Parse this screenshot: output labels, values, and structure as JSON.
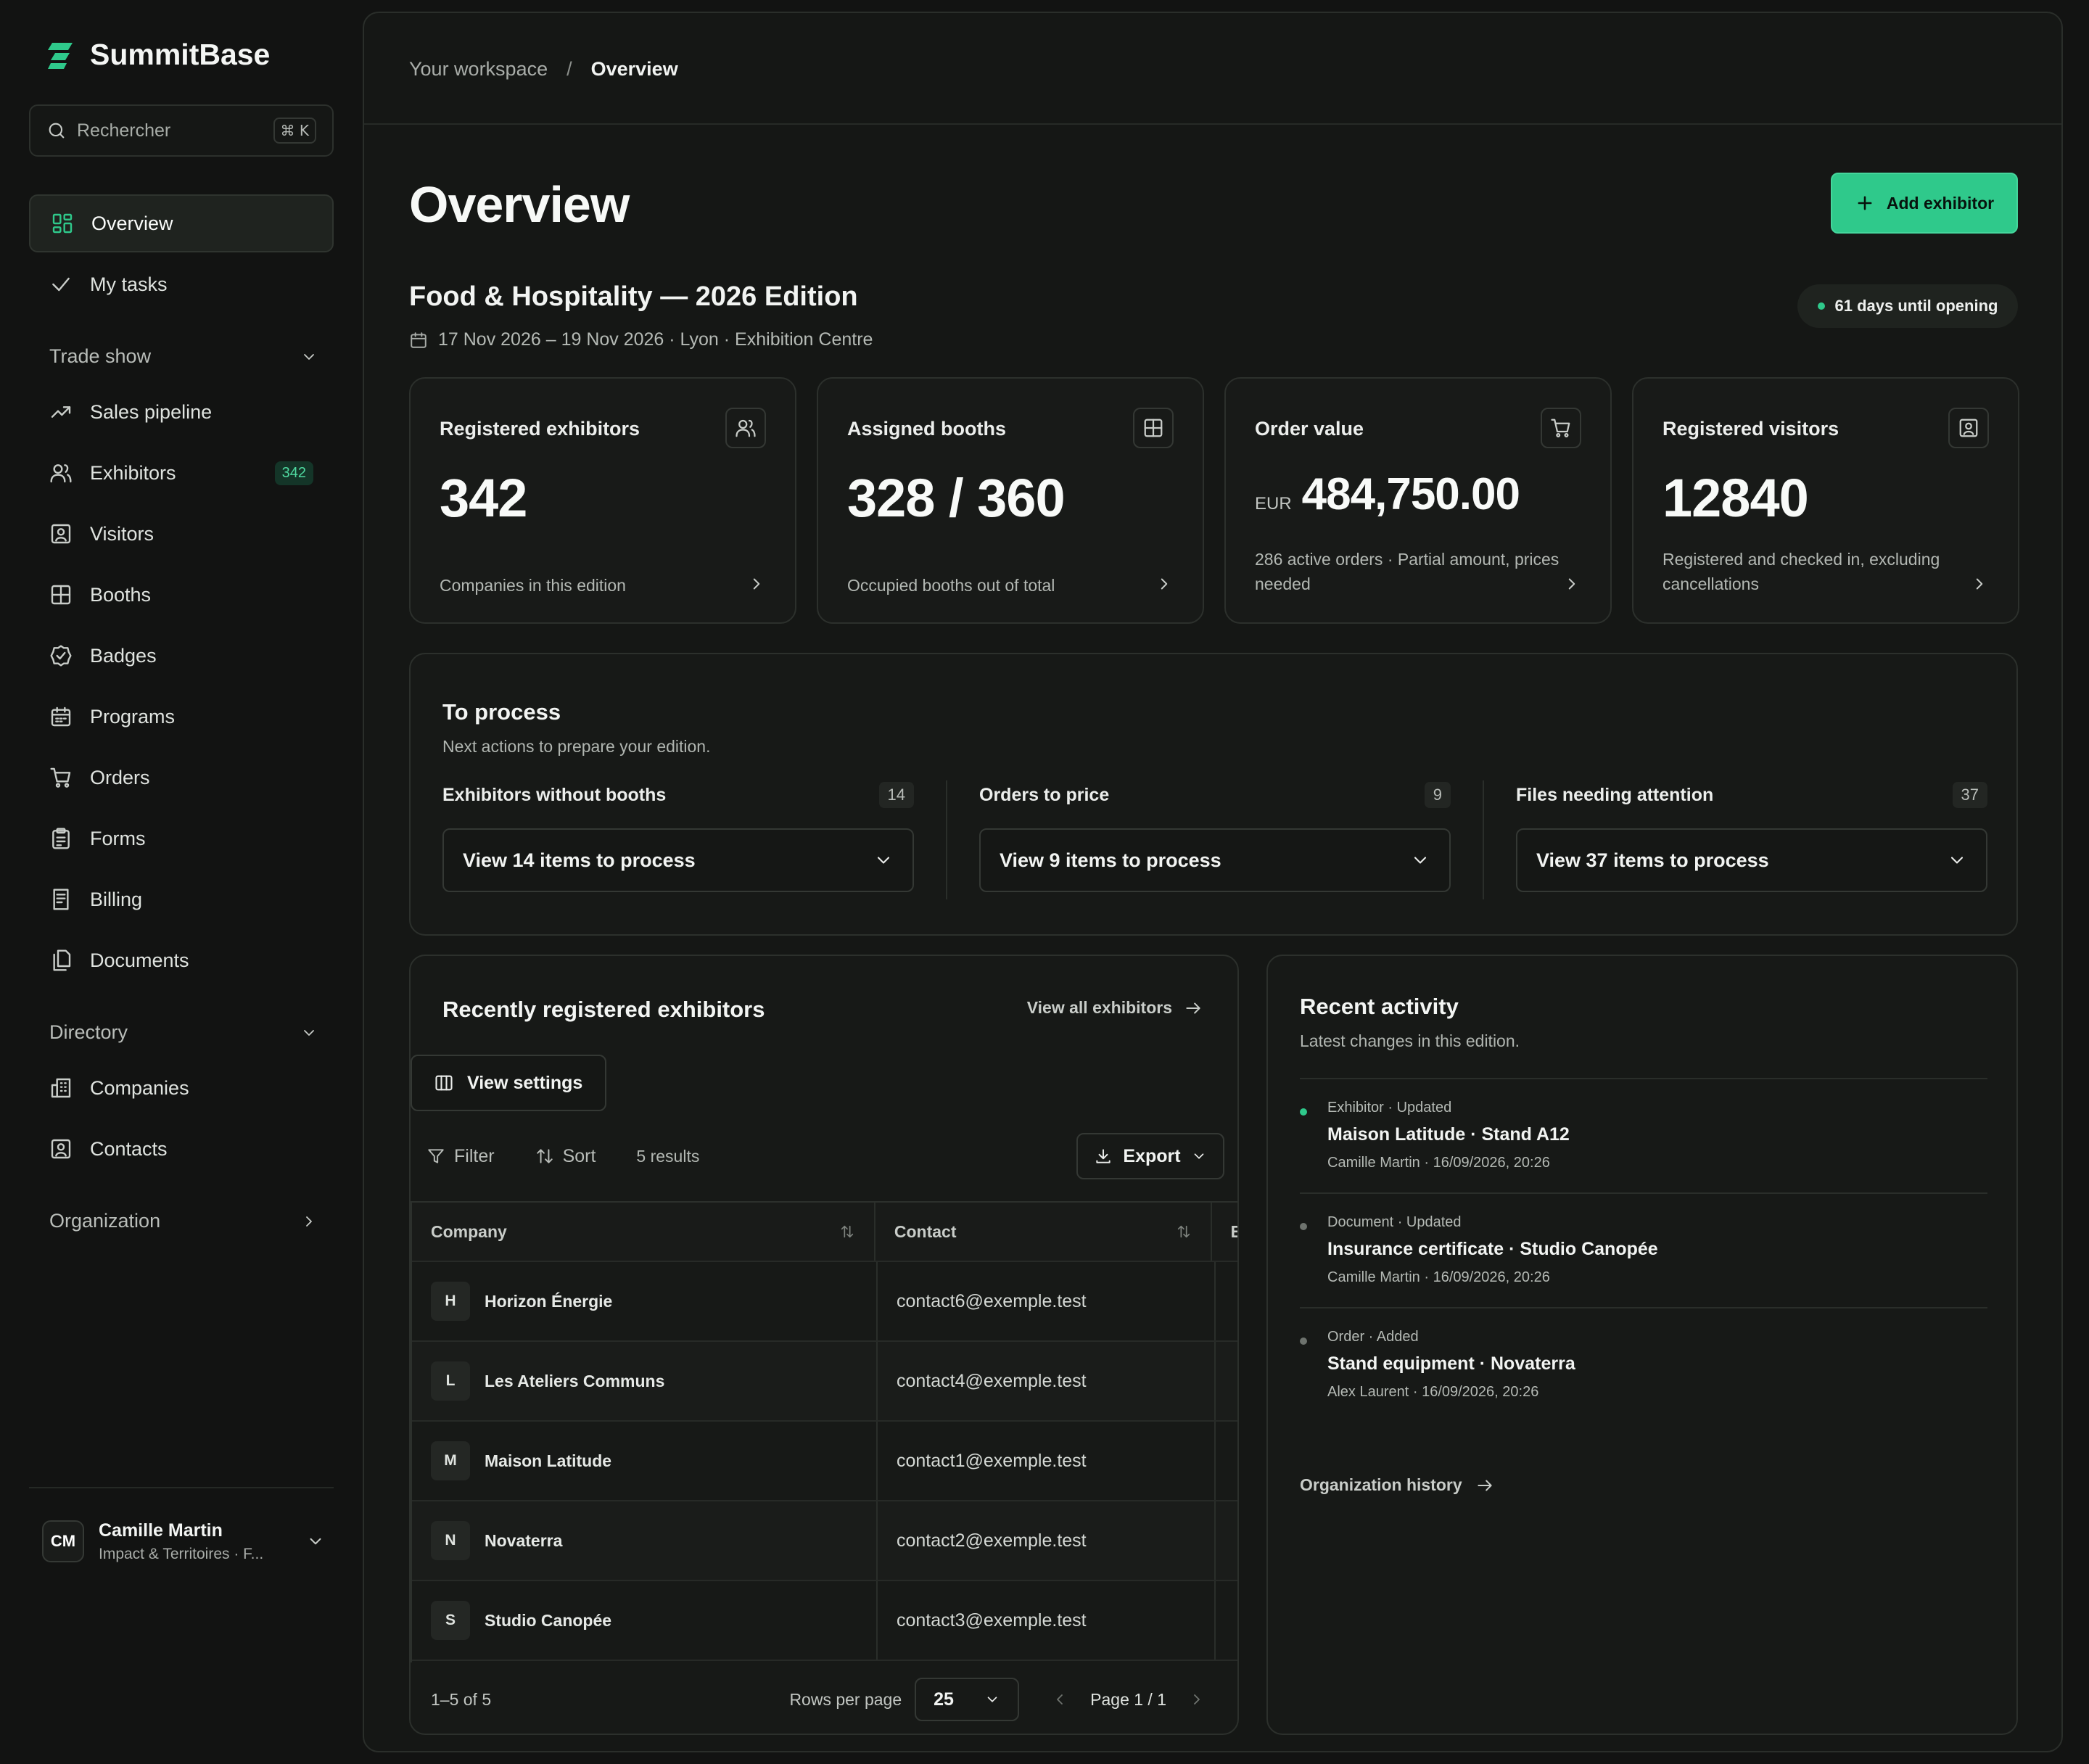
{
  "app": {
    "name": "SummitBase",
    "accent": "#2fc98b"
  },
  "search": {
    "placeholder": "Rechercher",
    "shortcut": "⌘ K"
  },
  "nav": {
    "overview": "Overview",
    "my_tasks": "My tasks",
    "trade_show": {
      "label": "Trade show",
      "items": [
        {
          "label": "Sales pipeline",
          "icon": "trend-icon"
        },
        {
          "label": "Exhibitors",
          "icon": "users-icon",
          "badge": "342"
        },
        {
          "label": "Visitors",
          "icon": "visitor-icon"
        },
        {
          "label": "Booths",
          "icon": "grid-icon"
        },
        {
          "label": "Badges",
          "icon": "badge-check-icon"
        },
        {
          "label": "Programs",
          "icon": "calendar-icon"
        },
        {
          "label": "Orders",
          "icon": "cart-icon"
        },
        {
          "label": "Forms",
          "icon": "clipboard-icon"
        },
        {
          "label": "Billing",
          "icon": "receipt-icon"
        },
        {
          "label": "Documents",
          "icon": "documents-icon"
        }
      ]
    },
    "directory": {
      "label": "Directory",
      "items": [
        {
          "label": "Companies",
          "icon": "building-icon"
        },
        {
          "label": "Contacts",
          "icon": "contact-icon"
        }
      ]
    },
    "organization": "Organization"
  },
  "user": {
    "initials": "CM",
    "name": "Camille Martin",
    "org": "Impact & Territoires · F..."
  },
  "breadcrumb": {
    "root": "Your workspace",
    "sep": "/",
    "current": "Overview"
  },
  "page": {
    "title": "Overview",
    "add_button": "Add exhibitor",
    "edition": "Food & Hospitality — 2026 Edition",
    "edition_meta": "17 Nov 2026 – 19 Nov 2026 · Lyon · Exhibition Centre",
    "countdown": "61 days until opening"
  },
  "kpis": {
    "exhibitors": {
      "title": "Registered exhibitors",
      "value": "342",
      "desc": "Companies in this edition"
    },
    "booths": {
      "title": "Assigned booths",
      "value": "328 / 360",
      "desc": "Occupied booths out of total"
    },
    "orders": {
      "title": "Order value",
      "currency": "EUR",
      "value": "484,750.00",
      "desc": "286 active orders · Partial amount, prices needed"
    },
    "visitors": {
      "title": "Registered visitors",
      "value": "12840",
      "desc": "Registered and checked in, excluding cancellations"
    }
  },
  "process": {
    "title": "To process",
    "subtitle": "Next actions to prepare your edition.",
    "columns": [
      {
        "label": "Exhibitors without booths",
        "count": "14",
        "select": "View 14 items to process"
      },
      {
        "label": "Orders to price",
        "count": "9",
        "select": "View 9 items to process"
      },
      {
        "label": "Files needing attention",
        "count": "37",
        "select": "View 37 items to process"
      }
    ]
  },
  "table": {
    "title": "Recently registered exhibitors",
    "view_all": "View all exhibitors",
    "view_settings": "View settings",
    "filter": "Filter",
    "sort": "Sort",
    "results": "5 results",
    "export": "Export",
    "headers": {
      "company": "Company",
      "contact": "Contact",
      "next": "E"
    },
    "rows": [
      {
        "initial": "H",
        "company": "Horizon Énergie",
        "contact": "contact6@exemple.test"
      },
      {
        "initial": "L",
        "company": "Les Ateliers Communs",
        "contact": "contact4@exemple.test"
      },
      {
        "initial": "M",
        "company": "Maison Latitude",
        "contact": "contact1@exemple.test"
      },
      {
        "initial": "N",
        "company": "Novaterra",
        "contact": "contact2@exemple.test"
      },
      {
        "initial": "S",
        "company": "Studio Canopée",
        "contact": "contact3@exemple.test"
      }
    ],
    "range": "1–5 of 5",
    "rows_per_page_label": "Rows per page",
    "rows_per_page": "25",
    "page": "Page 1 / 1"
  },
  "activity": {
    "title": "Recent activity",
    "subtitle": "Latest changes in this edition.",
    "items": [
      {
        "kind": "Exhibitor · Updated",
        "main": "Maison Latitude · Stand A12",
        "meta": "Camille Martin · 16/09/2026, 20:26",
        "highlight": true
      },
      {
        "kind": "Document · Updated",
        "main": "Insurance certificate · Studio Canopée",
        "meta": "Camille Martin · 16/09/2026, 20:26",
        "highlight": false
      },
      {
        "kind": "Order · Added",
        "main": "Stand equipment · Novaterra",
        "meta": "Alex Laurent · 16/09/2026, 20:26",
        "highlight": false
      }
    ],
    "history_link": "Organization history"
  }
}
